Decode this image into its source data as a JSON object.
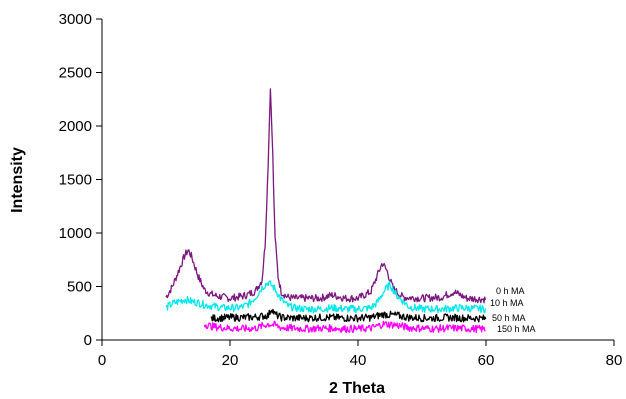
{
  "chart_data": {
    "type": "line",
    "title": "",
    "xlabel": "2 Theta",
    "ylabel": "Intensity",
    "xlim": [
      0,
      80
    ],
    "ylim": [
      0,
      3000
    ],
    "xticks": [
      0,
      20,
      40,
      60,
      80
    ],
    "yticks": [
      0,
      500,
      1000,
      1500,
      2000,
      2500,
      3000
    ],
    "grid": false,
    "legend": "inline labels at right end of each series",
    "series": [
      {
        "name": "0 h MA",
        "color": "#7b177f",
        "x": [
          10,
          11,
          12,
          13,
          13.5,
          14,
          15,
          16,
          17,
          18,
          19,
          20,
          21,
          22,
          23,
          24,
          25,
          25.5,
          26,
          26.3,
          26.6,
          27,
          27.5,
          28,
          29,
          30,
          32,
          34,
          36,
          38,
          40,
          42,
          43,
          43.8,
          44.5,
          45.5,
          47,
          50,
          53,
          55,
          57,
          60
        ],
        "y": [
          400,
          500,
          650,
          800,
          840,
          780,
          600,
          470,
          430,
          410,
          400,
          390,
          400,
          410,
          430,
          460,
          560,
          900,
          1700,
          2380,
          1900,
          1000,
          600,
          450,
          400,
          390,
          390,
          390,
          420,
          390,
          390,
          450,
          600,
          720,
          650,
          480,
          400,
          390,
          400,
          450,
          390,
          380
        ]
      },
      {
        "name": "10 h MA",
        "color": "#00e8ee",
        "x": [
          10,
          11,
          12,
          13,
          14,
          15,
          16,
          17,
          18,
          19,
          20,
          21,
          22,
          23,
          24,
          25,
          26,
          27,
          28,
          29,
          30,
          32,
          34,
          36,
          38,
          40,
          42,
          43,
          44,
          45,
          46,
          48,
          50,
          53,
          56,
          60
        ],
        "y": [
          300,
          340,
          360,
          380,
          360,
          350,
          330,
          320,
          310,
          300,
          300,
          300,
          310,
          340,
          400,
          490,
          540,
          480,
          380,
          320,
          300,
          290,
          290,
          300,
          290,
          290,
          300,
          350,
          450,
          520,
          420,
          310,
          290,
          290,
          300,
          290
        ]
      },
      {
        "name": "50 h MA",
        "color": "#000000",
        "x": [
          17,
          18,
          20,
          22,
          24,
          26,
          26.5,
          27,
          28,
          30,
          32,
          34,
          36,
          38,
          40,
          42,
          44,
          46,
          48,
          50,
          52,
          54,
          56,
          58,
          60
        ],
        "y": [
          200,
          205,
          210,
          210,
          215,
          230,
          300,
          240,
          210,
          205,
          205,
          210,
          210,
          205,
          205,
          210,
          240,
          230,
          210,
          205,
          205,
          210,
          205,
          205,
          200
        ]
      },
      {
        "name": "150 h MA",
        "color": "#ff00ff",
        "x": [
          16,
          17,
          18,
          20,
          22,
          24,
          26,
          27,
          28,
          30,
          32,
          34,
          36,
          38,
          40,
          42,
          44,
          46,
          48,
          50,
          52,
          54,
          56,
          58,
          60
        ],
        "y": [
          150,
          130,
          120,
          110,
          105,
          110,
          150,
          140,
          115,
          110,
          105,
          110,
          110,
          105,
          105,
          110,
          150,
          140,
          115,
          110,
          105,
          110,
          110,
          105,
          100
        ]
      }
    ]
  }
}
